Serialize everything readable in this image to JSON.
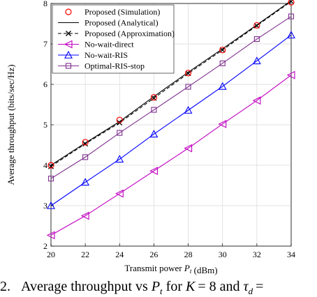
{
  "chart_data": {
    "type": "line",
    "xlabel": "Transmit power P_t (dBm)",
    "ylabel": "Average throughput (bits/sec/Hz)",
    "xlim": [
      20,
      34
    ],
    "ylim": [
      2,
      8
    ],
    "xticks": [
      "20",
      "22",
      "24",
      "26",
      "28",
      "30",
      "32",
      "34"
    ],
    "yticks": [
      "2",
      "3",
      "4",
      "5",
      "6",
      "7",
      "8"
    ],
    "grid": true,
    "legend_position": "top-left",
    "x": [
      20,
      22,
      24,
      26,
      28,
      30,
      32,
      34
    ],
    "series": [
      {
        "name": "Proposed (Simulation)",
        "color": "#ff0000",
        "line": "none",
        "marker": "circle",
        "values": [
          4.0,
          4.57,
          5.12,
          5.68,
          6.28,
          6.85,
          7.46,
          8.03
        ]
      },
      {
        "name": "Proposed (Analytical)",
        "color": "#000000",
        "line": "solid",
        "marker": "none",
        "values": [
          4.0,
          4.55,
          5.08,
          5.7,
          6.3,
          6.88,
          7.47,
          8.07
        ]
      },
      {
        "name": "Proposed (Approximation)",
        "color": "#000000",
        "line": "dashed",
        "marker": "x",
        "values": [
          3.97,
          4.53,
          5.05,
          5.66,
          6.27,
          6.85,
          7.45,
          8.05
        ]
      },
      {
        "name": "No-wait-direct",
        "color": "#c000c0",
        "line": "solid",
        "marker": "triangle-left",
        "values": [
          2.27,
          2.75,
          3.3,
          3.86,
          4.42,
          5.02,
          5.6,
          6.23
        ]
      },
      {
        "name": "No-wait-RIS",
        "color": "#0000ff",
        "line": "solid",
        "marker": "triangle-up",
        "values": [
          3.0,
          3.58,
          4.15,
          4.77,
          5.36,
          5.95,
          6.58,
          7.22
        ]
      },
      {
        "name": "Optimal-RIS-stop",
        "color": "#7e2f8e",
        "line": "solid",
        "marker": "square",
        "values": [
          3.67,
          4.2,
          4.8,
          5.37,
          5.94,
          6.52,
          7.12,
          7.68
        ]
      }
    ]
  },
  "caption": {
    "prefix": "2.",
    "text": "Average throughput vs P_t for K = 8 and τ_d ="
  }
}
